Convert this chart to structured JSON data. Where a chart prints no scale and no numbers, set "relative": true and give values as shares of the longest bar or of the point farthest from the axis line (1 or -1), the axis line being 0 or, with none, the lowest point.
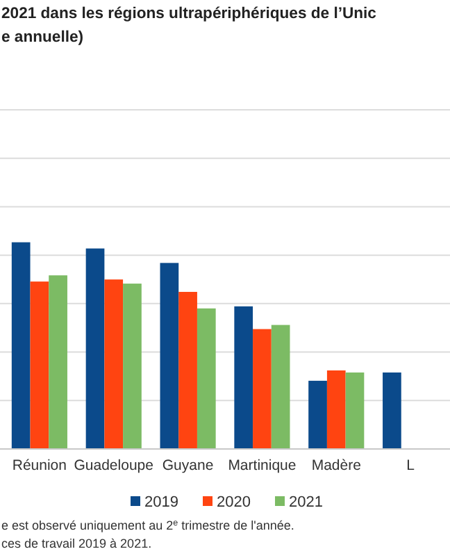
{
  "chart_data": {
    "type": "bar",
    "title": "2021 dans les régions ultrapériphériques de l’Unic",
    "subtitle": "e annuelle)",
    "relative": true,
    "grid": "y",
    "legend": "bottom",
    "categories": [
      "Réunion",
      "Guadeloupe",
      "Guyane",
      "Martinique",
      "Madère",
      "L"
    ],
    "series": [
      {
        "name": "2019",
        "color": "#0b4a8b",
        "values": [
          1,
          0.97,
          0.9,
          0.69,
          0.33,
          0.37
        ]
      },
      {
        "name": "2020",
        "color": "#ff4411",
        "values": [
          0.81,
          0.82,
          0.76,
          0.58,
          0.38,
          null
        ]
      },
      {
        "name": "2021",
        "color": "#7cbb64",
        "values": [
          0.84,
          0.8,
          0.68,
          0.6,
          0.37,
          null
        ]
      }
    ],
    "annotations": [
      "e est observé uniquement au 2$^{e}$ trimestre de l'année.",
      "ces de travail 2019 à 2021."
    ]
  }
}
